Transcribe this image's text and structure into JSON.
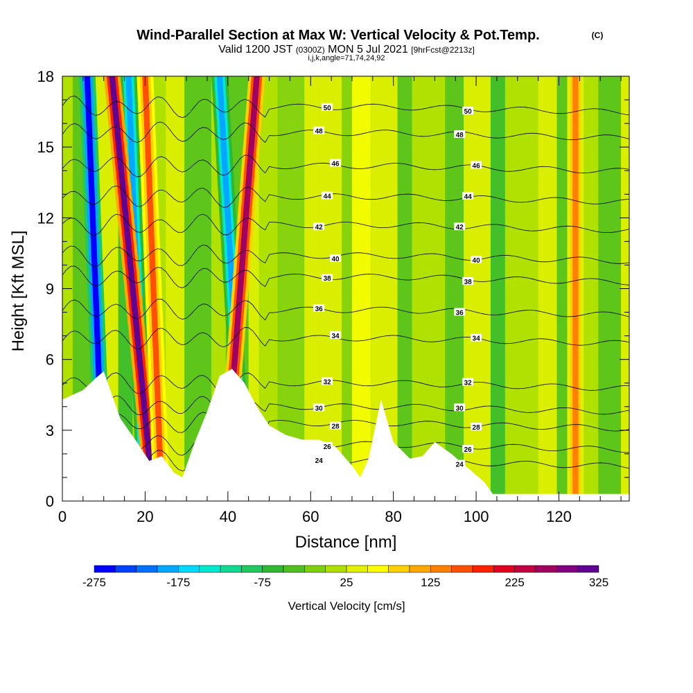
{
  "title": {
    "main": "Wind-Parallel Section at Max W: Vertical Velocity & Pot.Temp.",
    "mark": "(C)",
    "line2_a": "Valid 1200 JST",
    "line2_b": "(0300Z)",
    "line2_c": "MON 5 Jul 2021",
    "line2_d": "[9hrFcst@2213z]",
    "line3": "i,j,k,angle=71,74,24,92"
  },
  "chart_data": {
    "type": "heatmap",
    "xlabel": "Distance [nm]",
    "ylabel": "Height [Kft MSL]",
    "xlim": [
      0,
      137
    ],
    "ylim": [
      0,
      18
    ],
    "x_ticks": [
      0,
      20,
      40,
      60,
      80,
      100,
      120
    ],
    "y_ticks": [
      0,
      3,
      6,
      9,
      12,
      15,
      18
    ],
    "colorbar": {
      "title": "Vertical Velocity [cm/s]",
      "labels": [
        "-275",
        "-175",
        "-75",
        "25",
        "125",
        "225",
        "325"
      ],
      "colors": [
        "#0000ff",
        "#0040ff",
        "#0070ff",
        "#00a8ff",
        "#00d8ff",
        "#00e8d0",
        "#10d890",
        "#20c860",
        "#30b830",
        "#50c020",
        "#80d010",
        "#b0e000",
        "#e0f000",
        "#ffff00",
        "#ffd000",
        "#ffa800",
        "#ff8000",
        "#ff5000",
        "#ff2000",
        "#e00020",
        "#c00040",
        "#a00060",
        "#800080",
        "#600090"
      ]
    },
    "terrain_kft": [
      [
        0,
        4.3
      ],
      [
        5,
        4.7
      ],
      [
        8,
        5.2
      ],
      [
        10,
        5.5
      ],
      [
        12,
        4.5
      ],
      [
        14,
        3.5
      ],
      [
        16,
        3.0
      ],
      [
        18,
        2.5
      ],
      [
        21,
        1.7
      ],
      [
        24,
        1.9
      ],
      [
        27,
        1.2
      ],
      [
        29,
        1.0
      ],
      [
        32,
        2.5
      ],
      [
        35,
        3.8
      ],
      [
        38,
        5.3
      ],
      [
        41,
        5.6
      ],
      [
        44,
        5.0
      ],
      [
        47,
        4.0
      ],
      [
        50,
        3.2
      ],
      [
        54,
        2.8
      ],
      [
        58,
        2.6
      ],
      [
        62,
        2.6
      ],
      [
        66,
        2.3
      ],
      [
        70,
        1.5
      ],
      [
        72,
        1.0
      ],
      [
        74,
        1.8
      ],
      [
        77,
        4.3
      ],
      [
        80,
        2.5
      ],
      [
        84,
        1.8
      ],
      [
        87,
        1.9
      ],
      [
        90,
        2.5
      ],
      [
        94,
        2.0
      ],
      [
        98,
        1.4
      ],
      [
        102,
        0.8
      ],
      [
        104,
        0.3
      ],
      [
        110,
        0.3
      ],
      [
        120,
        0.3
      ],
      [
        137,
        0.3
      ]
    ],
    "updraft_bands": [
      {
        "x_top": 12,
        "x_bottom": 22,
        "value": 300
      },
      {
        "x_top": 20,
        "x_bottom": 24,
        "value": 150
      },
      {
        "x_top": 47,
        "x_bottom": 39,
        "value": 250
      },
      {
        "x_top": 124,
        "x_bottom": 124,
        "value": 130
      }
    ],
    "downdraft_bands": [
      {
        "x_top": 6,
        "x_bottom": 10,
        "value": -270
      },
      {
        "x_top": 16,
        "x_bottom": 20,
        "value": -200
      },
      {
        "x_top": 38,
        "x_bottom": 44,
        "value": -200
      }
    ],
    "theta_contours": [
      {
        "value": "24",
        "height": 1.7
      },
      {
        "value": "26",
        "height": 2.4
      },
      {
        "value": "28",
        "height": 3.3
      },
      {
        "value": "30",
        "height": 4.0
      },
      {
        "value": "32",
        "height": 5.0
      },
      {
        "value": "34",
        "height": 6.9
      },
      {
        "value": "36",
        "height": 8.1
      },
      {
        "value": "38",
        "height": 9.5
      },
      {
        "value": "40",
        "height": 10.4
      },
      {
        "value": "42",
        "height": 11.7
      },
      {
        "value": "44",
        "height": 12.9
      },
      {
        "value": "46",
        "height": 14.2
      },
      {
        "value": "48",
        "height": 15.6
      },
      {
        "value": "50",
        "height": 16.7
      }
    ]
  }
}
